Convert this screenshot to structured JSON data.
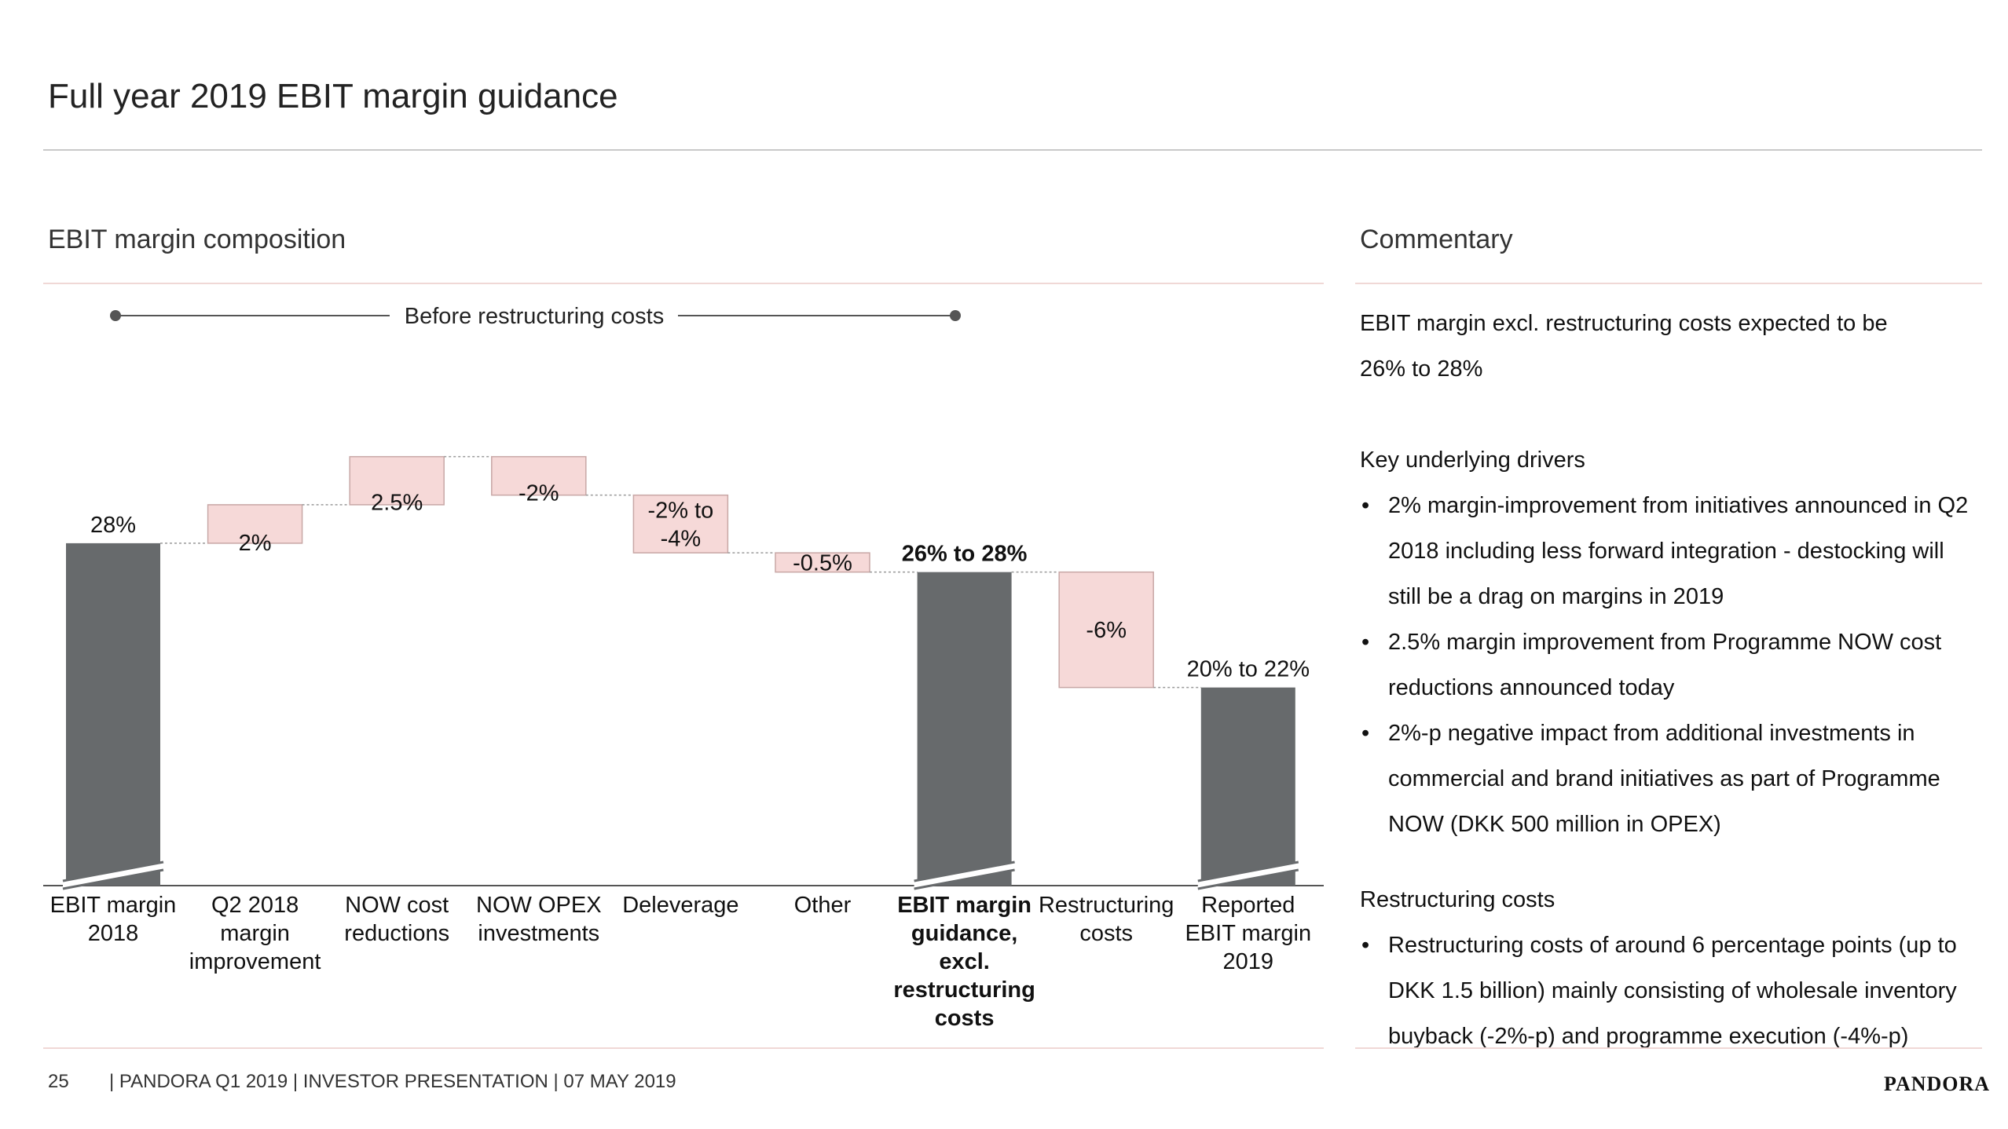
{
  "page": {
    "title": "Full year 2019 EBIT margin guidance"
  },
  "left_section": {
    "title": "EBIT margin composition",
    "bracket_label": "Before restructuring costs"
  },
  "chart_data": {
    "type": "bar",
    "subtype": "waterfall",
    "categories": [
      "EBIT margin 2018",
      "Q2 2018 margin improvement",
      "NOW cost reductions",
      "NOW OPEX investments",
      "Deleverage",
      "Other",
      "EBIT margin guidance, excl. restructuring costs",
      "Restructuring costs",
      "Reported EBIT margin 2019"
    ],
    "category_lines": [
      [
        "EBIT margin",
        "2018"
      ],
      [
        "Q2 2018",
        "margin",
        "improvement"
      ],
      [
        "NOW cost",
        "reductions"
      ],
      [
        "NOW OPEX",
        "investments"
      ],
      [
        "Deleverage"
      ],
      [
        "Other"
      ],
      [
        "EBIT margin",
        "guidance,",
        "excl.",
        "restructuring",
        "costs"
      ],
      [
        "Restructuring",
        "costs"
      ],
      [
        "Reported",
        "EBIT margin",
        "2019"
      ]
    ],
    "bars": [
      {
        "kind": "total",
        "start": 0,
        "end": 28,
        "label": "28%",
        "bold": false
      },
      {
        "kind": "delta",
        "start": 28,
        "end": 30,
        "label": "2%",
        "bold": false
      },
      {
        "kind": "delta",
        "start": 30,
        "end": 32.5,
        "label": "2.5%",
        "bold": false
      },
      {
        "kind": "delta",
        "start": 32.5,
        "end": 30.5,
        "label": "-2%",
        "bold": false
      },
      {
        "kind": "delta",
        "start": 30.5,
        "end": 27.5,
        "label": "-2% to -4%",
        "label_lines": [
          "-2% to",
          "-4%"
        ],
        "bold": false
      },
      {
        "kind": "delta",
        "start": 27.5,
        "end": 26.5,
        "label": "-0.5%",
        "bold": false
      },
      {
        "kind": "total",
        "start": 0,
        "end": 26.5,
        "label": "26% to 28%",
        "bold": true
      },
      {
        "kind": "delta",
        "start": 26.5,
        "end": 20.5,
        "label": "-6%",
        "bold": false
      },
      {
        "kind": "total",
        "start": 0,
        "end": 20.5,
        "label": "20% to 22%",
        "bold": false
      }
    ],
    "axis_break": true,
    "colors": {
      "total": "#676a6c",
      "delta": "#f6d9d8",
      "delta_border": "#c8a7a6",
      "connector": "#9a9a9a"
    },
    "title": "EBIT margin composition",
    "xlabel": "",
    "ylabel": ""
  },
  "commentary": {
    "title": "Commentary",
    "intro_line1": "EBIT margin excl. restructuring costs expected to be",
    "intro_line2": "26% to 28%",
    "drivers_heading": "Key underlying drivers",
    "drivers": [
      "2% margin-improvement from initiatives announced in Q2 2018 including less forward integration - destocking will still be a drag on margins in 2019",
      "2.5% margin improvement from Programme NOW cost reductions announced today",
      "2%-p negative impact from additional investments in commercial and brand initiatives as part of Programme NOW (DKK 500 million in OPEX)"
    ],
    "restructuring_heading": "Restructuring costs",
    "restructuring": [
      "Restructuring costs of around 6 percentage points (up to DKK 1.5 billion) mainly consisting of wholesale inventory buyback (-2%-p) and programme execution (-4%-p)"
    ]
  },
  "footer": {
    "page_number": "25",
    "text": "| PANDORA Q1 2019 | INVESTOR PRESENTATION | 07 MAY 2019",
    "logo": "PANDORA"
  }
}
